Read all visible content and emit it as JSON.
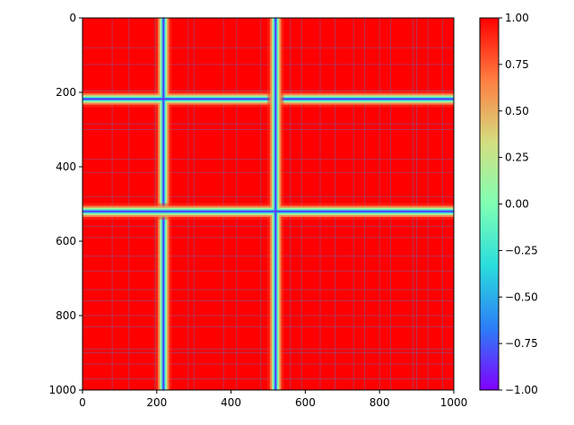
{
  "chart_data": {
    "type": "heatmap",
    "title": "",
    "xlabel": "",
    "ylabel": "",
    "xlim": [
      0,
      1000
    ],
    "ylim": [
      1000,
      0
    ],
    "x_ticks": [
      0,
      200,
      400,
      600,
      800,
      1000
    ],
    "y_ticks": [
      0,
      200,
      400,
      600,
      800,
      1000
    ],
    "x_tick_labels": [
      "0",
      "200",
      "400",
      "600",
      "800",
      "1000"
    ],
    "y_tick_labels": [
      "0",
      "200",
      "400",
      "600",
      "800",
      "1000"
    ],
    "colormap": "rainbow",
    "colormap_stops": [
      "#8000ff",
      "#2c7ef7",
      "#2adddd",
      "#80ffb4",
      "#d4dd80",
      "#ff7e41",
      "#ff0000"
    ],
    "value_range": [
      -1.0,
      1.0
    ],
    "colorbar": {
      "ticks": [
        -1.0,
        -0.75,
        -0.5,
        -0.25,
        0.0,
        0.25,
        0.5,
        0.75,
        1.0
      ],
      "tick_labels": [
        "−1.00",
        "−0.75",
        "−0.50",
        "−0.25",
        "0.00",
        "0.25",
        "0.50",
        "0.75",
        "1.00"
      ],
      "placement": "right"
    },
    "background_value": 1.0,
    "low_bands": [
      {
        "center": 218,
        "min_value": -0.9
      },
      {
        "center": 520,
        "min_value": -0.9
      }
    ],
    "faint_lines": [
      80,
      125,
      195,
      285,
      300,
      380,
      415,
      480,
      560,
      590,
      640,
      680,
      730,
      760,
      800,
      830,
      890,
      900,
      930,
      970
    ]
  }
}
